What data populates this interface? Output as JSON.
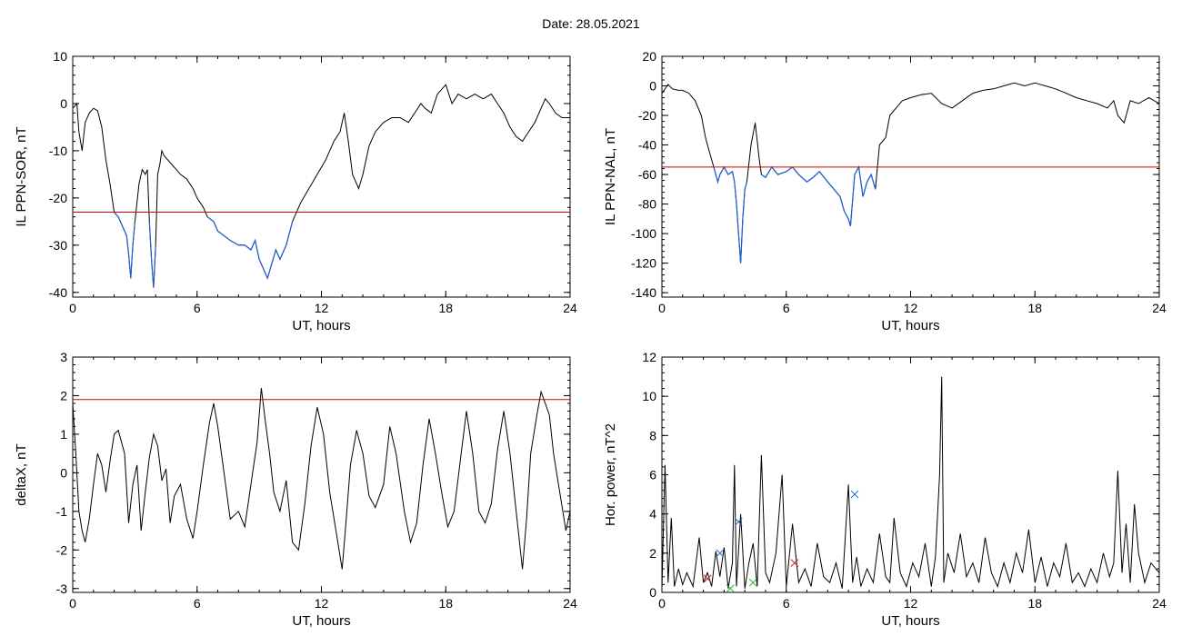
{
  "header": {
    "date_text": "Date:  28.05.2021"
  },
  "colors": {
    "trace": "#000000",
    "disturbed": "#1f5fd1",
    "threshold": "#d00000",
    "marker_red": "#d02020",
    "marker_green": "#20b020",
    "marker_blue": "#2060c0"
  },
  "chart_data": [
    {
      "type": "line",
      "xlabel": "UT, hours",
      "ylabel": "IL PPN-SOR, nT",
      "xlim": [
        0,
        24
      ],
      "ylim": [
        -41,
        10
      ],
      "xticks": [
        0,
        6,
        12,
        18,
        24
      ],
      "yticks": [
        -40,
        -30,
        -20,
        -10,
        0,
        10
      ],
      "threshold": -23,
      "highlight_below_threshold": true,
      "series": [
        {
          "x": [
            0,
            0.2,
            0.3,
            0.45,
            0.6,
            0.8,
            1.0,
            1.2,
            1.4,
            1.6,
            1.8,
            2.0,
            2.2,
            2.4,
            2.5,
            2.6,
            2.7,
            2.8,
            2.9,
            3.0,
            3.2,
            3.35,
            3.5,
            3.6,
            3.7,
            3.8,
            3.9,
            4.0,
            4.1,
            4.2,
            4.3,
            4.4,
            4.6,
            4.8,
            5.0,
            5.2,
            5.5,
            5.8,
            6.0,
            6.3,
            6.5,
            6.8,
            7.0,
            7.3,
            7.6,
            8.0,
            8.3,
            8.6,
            8.8,
            9.0,
            9.2,
            9.4,
            9.6,
            9.8,
            10.0,
            10.3,
            10.6,
            11.0,
            11.4,
            11.8,
            12.2,
            12.6,
            12.9,
            13.1,
            13.3,
            13.5,
            13.8,
            14.0,
            14.3,
            14.6,
            15.0,
            15.4,
            15.8,
            16.2,
            16.5,
            16.8,
            17.0,
            17.3,
            17.6,
            18.0,
            18.3,
            18.6,
            19.0,
            19.4,
            19.8,
            20.2,
            20.5,
            20.8,
            21.1,
            21.4,
            21.7,
            22.0,
            22.3,
            22.6,
            22.8,
            23.0,
            23.3,
            23.6,
            24.0
          ],
          "y": [
            -1,
            0,
            -6,
            -10,
            -4,
            -2,
            -1,
            -1.5,
            -5,
            -12,
            -17,
            -23,
            -24,
            -26,
            -27,
            -28,
            -32,
            -37,
            -30,
            -25,
            -17,
            -14,
            -15,
            -14,
            -25,
            -33,
            -39,
            -30,
            -15,
            -13,
            -10,
            -11,
            -12,
            -13,
            -14,
            -15,
            -16,
            -18,
            -20,
            -22,
            -24,
            -25,
            -27,
            -28,
            -29,
            -30,
            -30,
            -31,
            -29,
            -33,
            -35,
            -37,
            -34,
            -31,
            -33,
            -30,
            -25,
            -21,
            -18,
            -15,
            -12,
            -8,
            -6,
            -2,
            -8,
            -15,
            -18,
            -15,
            -9,
            -6,
            -4,
            -3,
            -3,
            -4,
            -2,
            0,
            -1,
            -2,
            2,
            4,
            0,
            2,
            1,
            2,
            1,
            2,
            0,
            -2,
            -5,
            -7,
            -8,
            -6,
            -4,
            -1,
            1,
            0,
            -2,
            -3,
            -3
          ]
        }
      ]
    },
    {
      "type": "line",
      "xlabel": "UT, hours",
      "ylabel": "IL PPN-NAL, nT",
      "xlim": [
        0,
        24
      ],
      "ylim": [
        -143,
        20
      ],
      "xticks": [
        0,
        6,
        12,
        18,
        24
      ],
      "yticks": [
        -140,
        -120,
        -100,
        -80,
        -60,
        -40,
        -20,
        0,
        20
      ],
      "threshold": -55,
      "highlight_below_threshold": true,
      "series": [
        {
          "x": [
            0,
            0.3,
            0.5,
            0.8,
            1.0,
            1.3,
            1.6,
            1.9,
            2.1,
            2.3,
            2.5,
            2.7,
            2.8,
            3.0,
            3.2,
            3.4,
            3.5,
            3.6,
            3.7,
            3.8,
            3.9,
            4.0,
            4.1,
            4.3,
            4.5,
            4.7,
            4.8,
            5.0,
            5.3,
            5.6,
            6.0,
            6.3,
            6.6,
            7.0,
            7.3,
            7.6,
            8.0,
            8.3,
            8.6,
            8.8,
            9.0,
            9.1,
            9.3,
            9.5,
            9.7,
            9.9,
            10.1,
            10.3,
            10.5,
            10.8,
            11.0,
            11.3,
            11.6,
            12.0,
            12.5,
            13.0,
            13.5,
            14.0,
            14.5,
            15.0,
            15.5,
            16.0,
            16.5,
            17.0,
            17.5,
            18.0,
            18.5,
            19.0,
            19.5,
            20.0,
            20.5,
            21.0,
            21.5,
            21.8,
            22.0,
            22.3,
            22.6,
            23.0,
            23.5,
            24.0
          ],
          "y": [
            -5,
            1,
            -2,
            -3,
            -3,
            -5,
            -10,
            -20,
            -35,
            -45,
            -55,
            -65,
            -60,
            -55,
            -60,
            -58,
            -65,
            -80,
            -100,
            -120,
            -90,
            -70,
            -65,
            -40,
            -25,
            -50,
            -60,
            -62,
            -55,
            -60,
            -58,
            -55,
            -60,
            -65,
            -62,
            -58,
            -65,
            -70,
            -75,
            -85,
            -90,
            -95,
            -60,
            -55,
            -75,
            -65,
            -60,
            -70,
            -40,
            -35,
            -20,
            -15,
            -10,
            -8,
            -6,
            -5,
            -12,
            -15,
            -10,
            -5,
            -3,
            -2,
            0,
            2,
            0,
            2,
            0,
            -2,
            -5,
            -8,
            -10,
            -12,
            -15,
            -10,
            -20,
            -25,
            -10,
            -12,
            -8,
            -12
          ]
        }
      ]
    },
    {
      "type": "line",
      "xlabel": "UT, hours",
      "ylabel": "deltaX, nT",
      "xlim": [
        0,
        24
      ],
      "ylim": [
        -3.1,
        3
      ],
      "xticks": [
        0,
        6,
        12,
        18,
        24
      ],
      "yticks": [
        -3,
        -2,
        -1,
        0,
        1,
        2,
        3
      ],
      "threshold": 1.9,
      "highlight_below_threshold": false,
      "series": [
        {
          "x": [
            0,
            0.15,
            0.3,
            0.45,
            0.6,
            0.8,
            1.0,
            1.2,
            1.4,
            1.6,
            1.8,
            2.0,
            2.2,
            2.5,
            2.7,
            2.9,
            3.1,
            3.3,
            3.5,
            3.7,
            3.9,
            4.1,
            4.3,
            4.5,
            4.7,
            4.9,
            5.2,
            5.5,
            5.8,
            6.0,
            6.3,
            6.6,
            6.8,
            7.0,
            7.3,
            7.6,
            8.0,
            8.3,
            8.6,
            8.9,
            9.1,
            9.3,
            9.5,
            9.7,
            10.0,
            10.3,
            10.6,
            10.9,
            11.2,
            11.5,
            11.8,
            12.1,
            12.4,
            12.7,
            13.0,
            13.2,
            13.4,
            13.7,
            14.0,
            14.3,
            14.6,
            15.0,
            15.3,
            15.6,
            16.0,
            16.3,
            16.6,
            16.9,
            17.2,
            17.5,
            17.8,
            18.1,
            18.4,
            18.7,
            19.0,
            19.3,
            19.6,
            19.9,
            20.2,
            20.5,
            20.8,
            21.1,
            21.4,
            21.7,
            21.9,
            22.1,
            22.4,
            22.6,
            22.8,
            23.0,
            23.2,
            23.5,
            23.8,
            24.0
          ],
          "y": [
            1.8,
            0.5,
            -1,
            -1.5,
            -1.8,
            -1.2,
            -0.3,
            0.5,
            0.2,
            -0.5,
            0.3,
            1.0,
            1.1,
            0.5,
            -1.3,
            -0.3,
            0.2,
            -1.5,
            -0.5,
            0.4,
            1.0,
            0.7,
            -0.2,
            0.1,
            -1.3,
            -0.6,
            -0.3,
            -1.2,
            -1.7,
            -1.0,
            0.2,
            1.3,
            1.8,
            1.2,
            0,
            -1.2,
            -1.0,
            -1.4,
            -0.3,
            0.8,
            2.2,
            1.3,
            0.5,
            -0.5,
            -1.0,
            -0.2,
            -1.8,
            -2.0,
            -0.8,
            0.7,
            1.7,
            1.0,
            -0.5,
            -1.5,
            -2.5,
            -1.2,
            0.2,
            1.1,
            0.5,
            -0.6,
            -0.9,
            -0.3,
            1.2,
            0.5,
            -1.0,
            -1.8,
            -1.3,
            0.2,
            1.4,
            0.5,
            -0.5,
            -1.4,
            -1.0,
            0.3,
            1.6,
            0.5,
            -1.0,
            -1.3,
            -0.8,
            0.6,
            1.6,
            0.5,
            -1.0,
            -2.5,
            -1.2,
            0.5,
            1.5,
            2.1,
            1.8,
            1.5,
            0.5,
            -0.5,
            -1.5,
            -1.0
          ]
        }
      ]
    },
    {
      "type": "line",
      "xlabel": "UT, hours",
      "ylabel": "Hor. power, nT^2",
      "xlim": [
        0,
        24
      ],
      "ylim": [
        0,
        12
      ],
      "xticks": [
        0,
        6,
        12,
        18,
        24
      ],
      "yticks": [
        0,
        2,
        4,
        6,
        8,
        10,
        12
      ],
      "series": [
        {
          "x": [
            0,
            0.15,
            0.3,
            0.45,
            0.6,
            0.8,
            1.0,
            1.2,
            1.5,
            1.8,
            2.0,
            2.2,
            2.4,
            2.6,
            2.8,
            3.0,
            3.2,
            3.4,
            3.5,
            3.6,
            3.8,
            4.0,
            4.2,
            4.4,
            4.6,
            4.8,
            5.0,
            5.2,
            5.5,
            5.8,
            6.0,
            6.3,
            6.6,
            6.9,
            7.2,
            7.5,
            7.8,
            8.1,
            8.4,
            8.7,
            9.0,
            9.2,
            9.4,
            9.6,
            9.9,
            10.2,
            10.5,
            10.8,
            11.0,
            11.2,
            11.5,
            11.8,
            12.1,
            12.4,
            12.7,
            13.0,
            13.2,
            13.4,
            13.5,
            13.6,
            13.8,
            14.1,
            14.4,
            14.7,
            15.0,
            15.3,
            15.6,
            15.9,
            16.2,
            16.5,
            16.8,
            17.1,
            17.4,
            17.7,
            18.0,
            18.3,
            18.6,
            18.9,
            19.2,
            19.5,
            19.8,
            20.1,
            20.4,
            20.7,
            21.0,
            21.3,
            21.6,
            21.8,
            22.0,
            22.2,
            22.4,
            22.6,
            22.8,
            23.0,
            23.3,
            23.6,
            24.0
          ],
          "y": [
            0.2,
            6.5,
            0.5,
            3.8,
            0.3,
            1.2,
            0.4,
            1.0,
            0.3,
            2.8,
            0.5,
            1.0,
            0.3,
            2.1,
            0.8,
            2.3,
            0.2,
            1.5,
            6.5,
            0.3,
            4.0,
            0.2,
            1.5,
            2.5,
            0.3,
            7.0,
            1.0,
            0.5,
            2.0,
            6.0,
            0.3,
            3.5,
            0.5,
            1.2,
            0.3,
            2.5,
            0.8,
            0.5,
            1.5,
            0.2,
            5.5,
            0.5,
            1.8,
            0.3,
            1.2,
            0.5,
            3.0,
            0.8,
            0.5,
            3.8,
            1.0,
            0.3,
            1.5,
            0.8,
            2.5,
            0.3,
            1.8,
            6.0,
            11.0,
            0.5,
            2.0,
            1.0,
            3.0,
            0.8,
            1.5,
            0.5,
            2.8,
            1.0,
            0.3,
            1.5,
            0.5,
            2.0,
            1.0,
            3.2,
            0.5,
            1.8,
            0.3,
            1.5,
            0.8,
            2.5,
            0.5,
            1.0,
            0.3,
            1.2,
            0.5,
            2.0,
            0.8,
            1.5,
            6.2,
            1.0,
            3.5,
            0.5,
            4.5,
            2.0,
            0.5,
            1.5,
            1.0
          ]
        }
      ],
      "markers": [
        {
          "color": "red",
          "x": [
            2.2,
            6.4
          ],
          "y": [
            0.7,
            1.5
          ]
        },
        {
          "color": "green",
          "x": [
            3.3,
            4.4
          ],
          "y": [
            0.2,
            0.5
          ]
        },
        {
          "color": "blue",
          "x": [
            2.8,
            3.7,
            9.3
          ],
          "y": [
            2.0,
            3.6,
            5.0
          ]
        }
      ]
    }
  ]
}
